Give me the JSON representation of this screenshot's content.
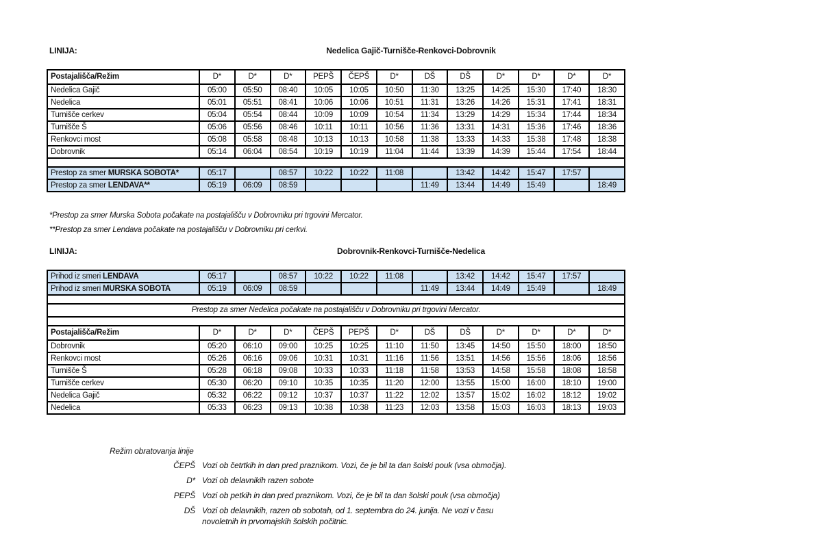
{
  "page": {
    "background_color": "#ffffff",
    "highlight_color": "#cfe2f3",
    "border_color": "#000000"
  },
  "section1": {
    "linija_label": "LINIJA:",
    "title": "Nedelica Gajič-Turnišče-Renkovci-Dobrovnik",
    "table": {
      "header": [
        "Postajališča/Režim",
        "D*",
        "D*",
        "D*",
        "PEPŠ",
        "ČEPŠ",
        "D*",
        "DŠ",
        "DŠ",
        "D*",
        "D*",
        "D*",
        "D*"
      ],
      "stations": [
        {
          "name": "Nedelica Gajič",
          "times": [
            "05:00",
            "05:50",
            "08:40",
            "10:05",
            "10:05",
            "10:50",
            "11:30",
            "13:25",
            "14:25",
            "15:30",
            "17:40",
            "18:30"
          ]
        },
        {
          "name": "Nedelica",
          "times": [
            "05:01",
            "05:51",
            "08:41",
            "10:06",
            "10:06",
            "10:51",
            "11:31",
            "13:26",
            "14:26",
            "15:31",
            "17:41",
            "18:31"
          ]
        },
        {
          "name": "Turnišče cerkev",
          "times": [
            "05:04",
            "05:54",
            "08:44",
            "10:09",
            "10:09",
            "10:54",
            "11:34",
            "13:29",
            "14:29",
            "15:34",
            "17:44",
            "18:34"
          ]
        },
        {
          "name": "Turnišče Š",
          "times": [
            "05:06",
            "05:56",
            "08:46",
            "10:11",
            "10:11",
            "10:56",
            "11:36",
            "13:31",
            "14:31",
            "15:36",
            "17:46",
            "18:36"
          ]
        },
        {
          "name": "Renkovci most",
          "times": [
            "05:08",
            "05:58",
            "08:48",
            "10:13",
            "10:13",
            "10:58",
            "11:38",
            "13:33",
            "14:33",
            "15:38",
            "17:48",
            "18:38"
          ]
        },
        {
          "name": "Dobrovnik",
          "times": [
            "05:14",
            "06:04",
            "08:54",
            "10:19",
            "10:19",
            "11:04",
            "11:44",
            "13:39",
            "14:39",
            "15:44",
            "17:54",
            "18:44"
          ]
        }
      ],
      "transfers": [
        {
          "prefix": "Prestop za smer ",
          "name": "MURSKA SOBOTA*",
          "times": [
            "05:17",
            "",
            "08:57",
            "10:22",
            "10:22",
            "11:08",
            "",
            "13:42",
            "14:42",
            "15:47",
            "17:57",
            ""
          ]
        },
        {
          "prefix": "Prestop za smer ",
          "name": "LENDAVA**",
          "times": [
            "05:19",
            "06:09",
            "08:59",
            "",
            "",
            "",
            "11:49",
            "13:44",
            "14:49",
            "15:49",
            "",
            "18:49"
          ]
        }
      ]
    },
    "footnotes": [
      "*Prestop za smer Murska Sobota počakate na postajališču v Dobrovniku pri trgovini Mercator.",
      "**Prestop za smer Lendava počakate na postajališču v Dobrovniku pri cerkvi."
    ]
  },
  "section2": {
    "linija_label": "LINIJA:",
    "title": "Dobrovnik-Renkovci-Turnišče-Nedelica",
    "table": {
      "arrivals": [
        {
          "prefix": "Prihod iz smeri ",
          "name": "LENDAVA",
          "times": [
            "05:17",
            "",
            "08:57",
            "10:22",
            "10:22",
            "11:08",
            "",
            "13:42",
            "14:42",
            "15:47",
            "17:57",
            ""
          ]
        },
        {
          "prefix": "Prihod iz smeri ",
          "name": "MURSKA SOBOTA",
          "times": [
            "05:19",
            "06:09",
            "08:59",
            "",
            "",
            "",
            "11:49",
            "13:44",
            "14:49",
            "15:49",
            "",
            "18:49"
          ]
        }
      ],
      "note": "Prestop za smer Nedelica počakate na postajališču v Dobrovniku pri trgovini Mercator.",
      "header": [
        "Postajališča/Režim",
        "D*",
        "D*",
        "D*",
        "ČEPŠ",
        "PEPŠ",
        "D*",
        "DŠ",
        "DŠ",
        "D*",
        "D*",
        "D*",
        "D*"
      ],
      "stations": [
        {
          "name": "Dobrovnik",
          "times": [
            "05:20",
            "06:10",
            "09:00",
            "10:25",
            "10:25",
            "11:10",
            "11:50",
            "13:45",
            "14:50",
            "15:50",
            "18:00",
            "18:50"
          ]
        },
        {
          "name": "Renkovci most",
          "times": [
            "05:26",
            "06:16",
            "09:06",
            "10:31",
            "10:31",
            "11:16",
            "11:56",
            "13:51",
            "14:56",
            "15:56",
            "18:06",
            "18:56"
          ]
        },
        {
          "name": "Turnišče Š",
          "times": [
            "05:28",
            "06:18",
            "09:08",
            "10:33",
            "10:33",
            "11:18",
            "11:58",
            "13:53",
            "14:58",
            "15:58",
            "18:08",
            "18:58"
          ]
        },
        {
          "name": "Turnišče cerkev",
          "times": [
            "05:30",
            "06:20",
            "09:10",
            "10:35",
            "10:35",
            "11:20",
            "12:00",
            "13:55",
            "15:00",
            "16:00",
            "18:10",
            "19:00"
          ]
        },
        {
          "name": "Nedelica Gajič",
          "times": [
            "05:32",
            "06:22",
            "09:12",
            "10:37",
            "10:37",
            "11:22",
            "12:02",
            "13:57",
            "15:02",
            "16:02",
            "18:12",
            "19:02"
          ]
        },
        {
          "name": "Nedelica",
          "times": [
            "05:33",
            "06:23",
            "09:13",
            "10:38",
            "10:38",
            "11:23",
            "12:03",
            "13:58",
            "15:03",
            "16:03",
            "18:13",
            "19:03"
          ]
        }
      ]
    }
  },
  "legend": {
    "title": "Režim obratovanja linije",
    "items": [
      {
        "code": "ČEPŠ",
        "text": "Vozi ob četrtkih in dan pred praznikom. Vozi, če je bil ta dan šolski pouk (vsa območja)."
      },
      {
        "code": "D*",
        "text": "Vozi ob delavnikih razen sobote"
      },
      {
        "code": "PEPŠ",
        "text": "Vozi ob petkih in dan pred praznikom. Vozi, če je bil ta dan šolski pouk (vsa območja)"
      },
      {
        "code": "DŠ",
        "text": "Vozi ob delavnikih, razen ob sobotah, od 1. septembra do 24. junija. Ne vozi v času novoletnih in prvomajskih šolskih počitnic."
      }
    ]
  }
}
